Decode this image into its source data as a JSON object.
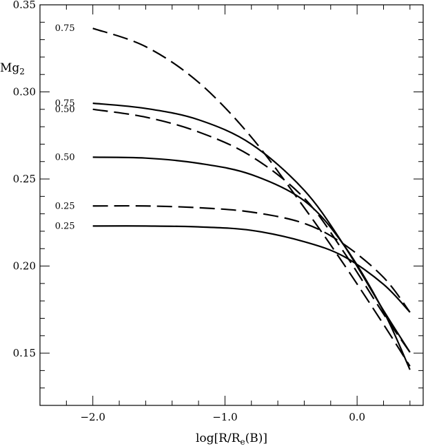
{
  "chart_data": {
    "type": "line",
    "ylabel": "Mg",
    "ylabel_sub": "2",
    "xlabel_parts": [
      "log[R/R",
      "e",
      "(B)]"
    ],
    "xlim": [
      -2.4,
      0.5
    ],
    "ylim": [
      0.12,
      0.35
    ],
    "xticks_major": [
      -2.0,
      -1.0,
      0.0
    ],
    "xtick_labels": [
      "−2.0",
      "−1.0",
      "0.0"
    ],
    "yticks_major": [
      0.15,
      0.2,
      0.25,
      0.3,
      0.35
    ],
    "ytick_labels": [
      "0.15",
      "0.20",
      "0.25",
      "0.30",
      "0.35"
    ],
    "grid": false,
    "series": [
      {
        "label": "0.75",
        "style": "dashed",
        "x": [
          -2.0,
          -1.6,
          -1.2,
          -0.8,
          -0.4,
          -0.1,
          0.2,
          0.4
        ],
        "y": [
          0.3365,
          0.326,
          0.3055,
          0.274,
          0.2335,
          0.201,
          0.1665,
          0.1425
        ]
      },
      {
        "label": "0.75",
        "style": "solid",
        "x": [
          -2.0,
          -1.6,
          -1.2,
          -0.8,
          -0.4,
          -0.1,
          0.2,
          0.4
        ],
        "y": [
          0.2935,
          0.2905,
          0.284,
          0.27,
          0.2435,
          0.212,
          0.1745,
          0.1505
        ]
      },
      {
        "label": "0.50",
        "style": "dashed",
        "x": [
          -2.0,
          -1.6,
          -1.2,
          -0.8,
          -0.4,
          -0.1,
          0.2,
          0.4
        ],
        "y": [
          0.29,
          0.2855,
          0.277,
          0.263,
          0.239,
          0.208,
          0.1725,
          0.1505
        ]
      },
      {
        "label": "0.50",
        "style": "solid",
        "x": [
          -2.0,
          -1.6,
          -1.2,
          -0.8,
          -0.4,
          -0.1,
          0.2,
          0.4
        ],
        "y": [
          0.2625,
          0.262,
          0.259,
          0.2525,
          0.2375,
          0.212,
          0.174,
          0.1405
        ]
      },
      {
        "label": "0.25",
        "style": "dashed",
        "x": [
          -2.0,
          -1.6,
          -1.2,
          -0.8,
          -0.4,
          -0.1,
          0.2,
          0.4
        ],
        "y": [
          0.2345,
          0.2345,
          0.2335,
          0.231,
          0.2245,
          0.2125,
          0.1935,
          0.1735
        ]
      },
      {
        "label": "0.25",
        "style": "solid",
        "x": [
          -2.0,
          -1.6,
          -1.2,
          -0.8,
          -0.4,
          -0.1,
          0.2,
          0.4
        ],
        "y": [
          0.223,
          0.223,
          0.2225,
          0.2205,
          0.214,
          0.2055,
          0.1895,
          0.1735
        ]
      }
    ]
  }
}
